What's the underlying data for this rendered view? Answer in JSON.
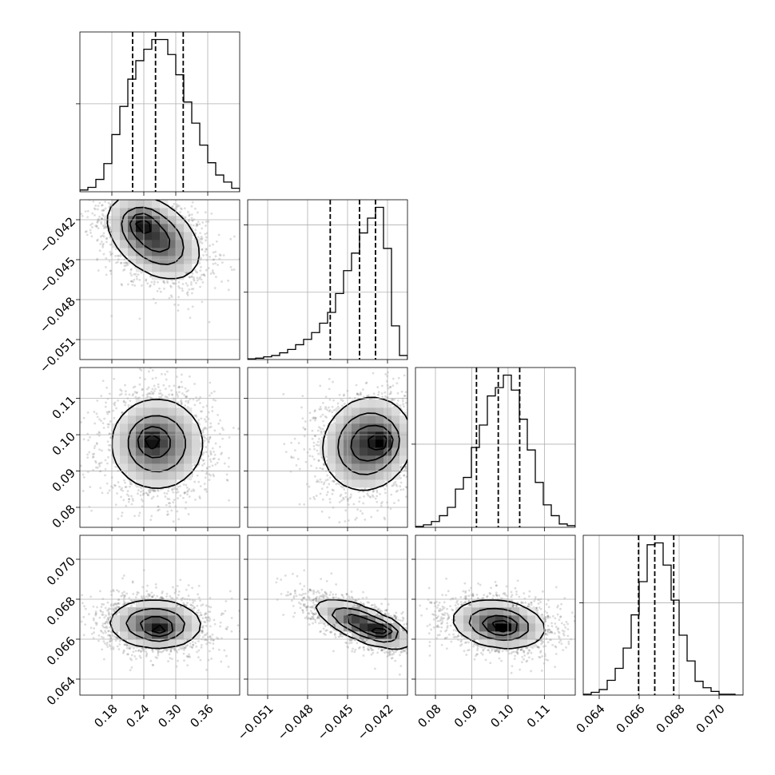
{
  "chart_data": {
    "type": "corner",
    "grid": true,
    "parameters": [
      {
        "range": [
          0.12,
          0.42
        ],
        "ticks": [
          0.18,
          0.24,
          0.3,
          0.36
        ],
        "tick_labels": [
          "0.18",
          "0.24",
          "0.30",
          "0.36"
        ],
        "quantiles": [
          0.219,
          0.262,
          0.314
        ],
        "histogram": {
          "bin_edges": [
            0.12,
            0.135,
            0.15,
            0.165,
            0.18,
            0.195,
            0.21,
            0.225,
            0.24,
            0.255,
            0.27,
            0.285,
            0.3,
            0.315,
            0.33,
            0.345,
            0.36,
            0.375,
            0.39,
            0.405,
            0.42
          ],
          "counts": [
            2,
            5,
            14,
            32,
            65,
            97,
            128,
            149,
            162,
            173,
            173,
            156,
            133,
            102,
            78,
            53,
            33,
            19,
            11,
            4
          ]
        }
      },
      {
        "range": [
          -0.0525,
          -0.0405
        ],
        "ticks": [
          -0.051,
          -0.048,
          -0.045,
          -0.042
        ],
        "tick_labels": [
          "−0.051",
          "−0.048",
          "−0.045",
          "−0.042"
        ],
        "quantiles": [
          -0.0463,
          -0.0441,
          -0.0429
        ],
        "histogram": {
          "bin_edges": [
            -0.0525,
            -0.0519,
            -0.0513,
            -0.0507,
            -0.0501,
            -0.0495,
            -0.0489,
            -0.0483,
            -0.0477,
            -0.0471,
            -0.0465,
            -0.0459,
            -0.0453,
            -0.0447,
            -0.0441,
            -0.0435,
            -0.0429,
            -0.0423,
            -0.0417,
            -0.0411,
            -0.0405
          ],
          "counts": [
            1,
            2,
            4,
            6,
            10,
            15,
            22,
            30,
            40,
            54,
            70,
            98,
            132,
            158,
            188,
            210,
            226,
            165,
            50,
            6
          ]
        }
      },
      {
        "range": [
          0.0745,
          0.1185
        ],
        "ticks": [
          0.08,
          0.09,
          0.1,
          0.11
        ],
        "tick_labels": [
          "0.08",
          "0.09",
          "0.10",
          "0.11"
        ],
        "quantiles": [
          0.0913,
          0.0973,
          0.1032
        ],
        "histogram": {
          "bin_edges": [
            0.0745,
            0.0767,
            0.0789,
            0.0811,
            0.0833,
            0.0855,
            0.0877,
            0.0899,
            0.0921,
            0.0943,
            0.0965,
            0.0987,
            0.1009,
            0.1031,
            0.1053,
            0.1075,
            0.1097,
            0.1119,
            0.1141,
            0.1163,
            0.1185
          ],
          "counts": [
            1,
            3,
            7,
            14,
            24,
            46,
            60,
            96,
            123,
            158,
            168,
            183,
            165,
            130,
            93,
            54,
            27,
            14,
            4,
            2
          ]
        }
      },
      {
        "range": [
          0.0632,
          0.0712
        ],
        "ticks": [
          0.064,
          0.066,
          0.068,
          0.07
        ],
        "tick_labels": [
          "0.064",
          "0.066",
          "0.068",
          "0.070"
        ],
        "quantiles": [
          0.06597,
          0.06678,
          0.06773
        ],
        "histogram": {
          "bin_edges": [
            0.0632,
            0.0636,
            0.064,
            0.0644,
            0.0648,
            0.0652,
            0.0656,
            0.066,
            0.0664,
            0.0668,
            0.0672,
            0.0676,
            0.068,
            0.0684,
            0.0688,
            0.0692,
            0.0696,
            0.07,
            0.0704,
            0.0708,
            0.0712
          ],
          "counts": [
            1,
            3,
            6,
            16,
            29,
            51,
            87,
            123,
            163,
            165,
            141,
            103,
            65,
            37,
            15,
            8,
            4,
            1,
            1,
            0
          ]
        }
      }
    ],
    "pairs": [
      {
        "x": 0,
        "y": 1,
        "center": [
          0.258,
          -0.0433
        ],
        "sigma": [
          0.044,
          0.0016
        ],
        "rho": -0.4,
        "peak": [
          0.235,
          -0.0422
        ]
      },
      {
        "x": 0,
        "y": 2,
        "center": [
          0.265,
          0.0975
        ],
        "sigma": [
          0.045,
          0.0065
        ],
        "rho": 0.0,
        "peak": [
          0.252,
          0.0985
        ]
      },
      {
        "x": 1,
        "y": 2,
        "center": [
          -0.0435,
          0.0975
        ],
        "sigma": [
          0.0017,
          0.0065
        ],
        "rho": 0.1,
        "peak": [
          -0.0423,
          0.0982
        ]
      },
      {
        "x": 0,
        "y": 3,
        "center": [
          0.262,
          0.06675
        ],
        "sigma": [
          0.044,
          0.00062
        ],
        "rho": -0.05,
        "peak": [
          0.27,
          0.0664
        ]
      },
      {
        "x": 1,
        "y": 3,
        "center": [
          -0.0438,
          0.06675
        ],
        "sigma": [
          0.0018,
          0.00062
        ],
        "rho": -0.7,
        "peak": [
          -0.0423,
          0.0664
        ]
      },
      {
        "x": 2,
        "y": 3,
        "center": [
          0.0975,
          0.06675
        ],
        "sigma": [
          0.0065,
          0.00062
        ],
        "rho": -0.2,
        "peak": [
          0.0985,
          0.0666
        ]
      }
    ]
  }
}
